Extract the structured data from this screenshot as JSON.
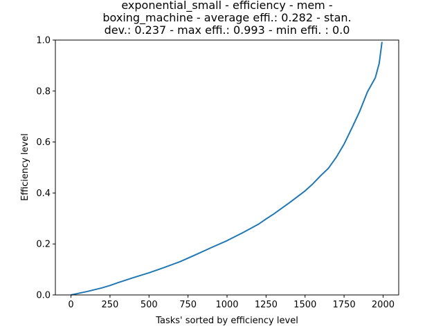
{
  "chart_data": {
    "type": "line",
    "title_lines": [
      "exponential_small - efficiency - mem -",
      "boxing_machine - average effi.: 0.282 - stan.",
      "dev.: 0.237 - max effi.: 0.993 - min effi. : 0.0"
    ],
    "xlabel": "Tasks' sorted by efficiency level",
    "ylabel": "Efficiency level",
    "xlim": [
      -100,
      2100
    ],
    "ylim": [
      0,
      1.0
    ],
    "xticks": [
      0,
      250,
      500,
      750,
      1000,
      1250,
      1500,
      1750,
      2000
    ],
    "xtick_labels": [
      "0",
      "250",
      "500",
      "750",
      "1000",
      "1250",
      "1500",
      "1750",
      "2000"
    ],
    "yticks": [
      0.0,
      0.2,
      0.4,
      0.6,
      0.8,
      1.0
    ],
    "ytick_labels": [
      "0.0",
      "0.2",
      "0.4",
      "0.6",
      "0.8",
      "1.0"
    ],
    "grid": false,
    "line_color": "#1f77b4",
    "series": [
      {
        "x": [
          0,
          100,
          200,
          250,
          300,
          400,
          500,
          600,
          700,
          800,
          900,
          1000,
          1100,
          1200,
          1250,
          1300,
          1400,
          1500,
          1550,
          1600,
          1650,
          1700,
          1750,
          1800,
          1850,
          1900,
          1950,
          1975,
          1993
        ],
        "y": [
          0.0,
          0.013,
          0.028,
          0.037,
          0.048,
          0.068,
          0.087,
          0.108,
          0.131,
          0.158,
          0.186,
          0.213,
          0.244,
          0.277,
          0.298,
          0.318,
          0.362,
          0.408,
          0.436,
          0.468,
          0.497,
          0.54,
          0.592,
          0.655,
          0.72,
          0.797,
          0.852,
          0.908,
          0.993
        ]
      }
    ]
  }
}
